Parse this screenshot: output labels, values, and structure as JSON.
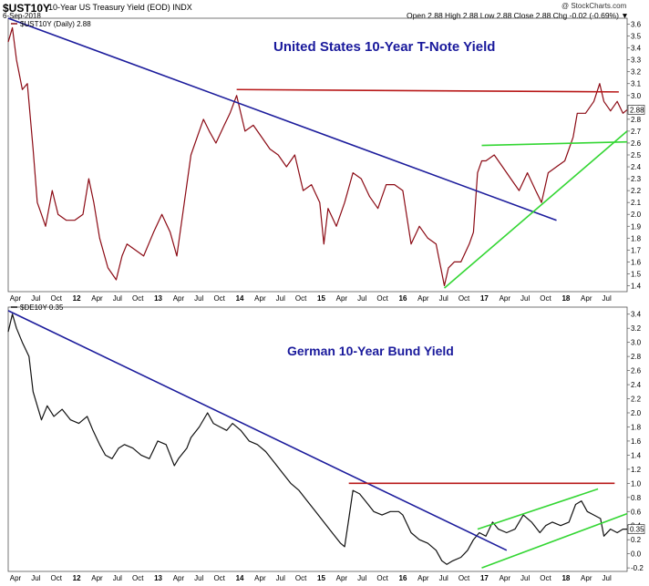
{
  "header": {
    "symbol": "$UST10Y",
    "description": "10-Year US Treasury Yield (EOD)  INDX",
    "date": "6-Sep-2018",
    "ohlc": "Open 2.88  High 2.88  Low 2.88  Close 2.88  Chg -0.02 (-0.69%) ▼",
    "brand": "@ StockCharts.com"
  },
  "colors": {
    "us_series": "#8b0a14",
    "de_series": "#111111",
    "downtrend": "#1c1c9c",
    "resistance": "#b81818",
    "uptrend": "#33d633",
    "annotation_text": "#1a1a9c"
  },
  "chart_data": [
    {
      "type": "line",
      "legend": "$UST10Y (Daily) 2.88",
      "annotation": "United States 10-Year T-Note Yield",
      "last_value_label": "2.88",
      "yticks": [
        1.4,
        1.5,
        1.6,
        1.7,
        1.8,
        1.9,
        2.0,
        2.1,
        2.2,
        2.3,
        2.4,
        2.5,
        2.6,
        2.7,
        2.8,
        2.9,
        3.0,
        3.1,
        3.2,
        3.3,
        3.4,
        3.5,
        3.6
      ],
      "ylim": [
        1.35,
        3.65
      ],
      "xlabels": [
        "Apr",
        "Jul",
        "Oct",
        "12",
        "Apr",
        "Jul",
        "Oct",
        "13",
        "Apr",
        "Jul",
        "Oct",
        "14",
        "Apr",
        "Jul",
        "Oct",
        "15",
        "Apr",
        "Jul",
        "Oct",
        "16",
        "Apr",
        "Jul",
        "Oct",
        "17",
        "Apr",
        "Jul",
        "Oct",
        "18",
        "Apr",
        "Jul"
      ],
      "xlim": [
        2011.25,
        2018.7
      ],
      "series": [
        {
          "values": [
            [
              2011.25,
              3.45
            ],
            [
              2011.3,
              3.57
            ],
            [
              2011.35,
              3.3
            ],
            [
              2011.42,
              3.05
            ],
            [
              2011.48,
              3.1
            ],
            [
              2011.55,
              2.55
            ],
            [
              2011.6,
              2.1
            ],
            [
              2011.65,
              2.0
            ],
            [
              2011.7,
              1.9
            ],
            [
              2011.78,
              2.2
            ],
            [
              2011.85,
              2.0
            ],
            [
              2011.95,
              1.95
            ],
            [
              2012.05,
              1.95
            ],
            [
              2012.15,
              2.0
            ],
            [
              2012.22,
              2.3
            ],
            [
              2012.28,
              2.1
            ],
            [
              2012.35,
              1.8
            ],
            [
              2012.45,
              1.55
            ],
            [
              2012.55,
              1.45
            ],
            [
              2012.62,
              1.65
            ],
            [
              2012.68,
              1.75
            ],
            [
              2012.78,
              1.7
            ],
            [
              2012.88,
              1.65
            ],
            [
              2013.0,
              1.85
            ],
            [
              2013.1,
              2.0
            ],
            [
              2013.2,
              1.85
            ],
            [
              2013.28,
              1.65
            ],
            [
              2013.35,
              2.0
            ],
            [
              2013.45,
              2.5
            ],
            [
              2013.55,
              2.7
            ],
            [
              2013.6,
              2.8
            ],
            [
              2013.67,
              2.7
            ],
            [
              2013.75,
              2.6
            ],
            [
              2013.85,
              2.75
            ],
            [
              2013.92,
              2.85
            ],
            [
              2014.0,
              3.0
            ],
            [
              2014.1,
              2.7
            ],
            [
              2014.2,
              2.75
            ],
            [
              2014.3,
              2.65
            ],
            [
              2014.4,
              2.55
            ],
            [
              2014.5,
              2.5
            ],
            [
              2014.6,
              2.4
            ],
            [
              2014.7,
              2.5
            ],
            [
              2014.8,
              2.2
            ],
            [
              2014.9,
              2.25
            ],
            [
              2015.0,
              2.1
            ],
            [
              2015.05,
              1.75
            ],
            [
              2015.1,
              2.05
            ],
            [
              2015.2,
              1.9
            ],
            [
              2015.3,
              2.1
            ],
            [
              2015.4,
              2.35
            ],
            [
              2015.5,
              2.3
            ],
            [
              2015.6,
              2.15
            ],
            [
              2015.7,
              2.05
            ],
            [
              2015.8,
              2.25
            ],
            [
              2015.9,
              2.25
            ],
            [
              2016.0,
              2.2
            ],
            [
              2016.1,
              1.75
            ],
            [
              2016.2,
              1.9
            ],
            [
              2016.3,
              1.8
            ],
            [
              2016.4,
              1.75
            ],
            [
              2016.5,
              1.4
            ],
            [
              2016.55,
              1.55
            ],
            [
              2016.62,
              1.6
            ],
            [
              2016.7,
              1.6
            ],
            [
              2016.8,
              1.75
            ],
            [
              2016.85,
              1.85
            ],
            [
              2016.9,
              2.35
            ],
            [
              2016.95,
              2.45
            ],
            [
              2017.0,
              2.45
            ],
            [
              2017.1,
              2.5
            ],
            [
              2017.2,
              2.4
            ],
            [
              2017.3,
              2.3
            ],
            [
              2017.4,
              2.2
            ],
            [
              2017.5,
              2.35
            ],
            [
              2017.6,
              2.2
            ],
            [
              2017.67,
              2.1
            ],
            [
              2017.75,
              2.35
            ],
            [
              2017.85,
              2.4
            ],
            [
              2017.95,
              2.45
            ],
            [
              2018.05,
              2.65
            ],
            [
              2018.1,
              2.85
            ],
            [
              2018.2,
              2.85
            ],
            [
              2018.3,
              2.95
            ],
            [
              2018.37,
              3.1
            ],
            [
              2018.42,
              2.95
            ],
            [
              2018.5,
              2.87
            ],
            [
              2018.58,
              2.95
            ],
            [
              2018.65,
              2.85
            ],
            [
              2018.7,
              2.88
            ]
          ]
        }
      ],
      "trendlines": [
        {
          "kind": "downtrend",
          "from": [
            2011.25,
            3.65
          ],
          "to": [
            2017.85,
            1.95
          ]
        },
        {
          "kind": "resistance",
          "from": [
            2014.0,
            3.05
          ],
          "to": [
            2018.6,
            3.03
          ]
        },
        {
          "kind": "uptrend",
          "from": [
            2016.5,
            1.38
          ],
          "to": [
            2018.7,
            2.7
          ]
        },
        {
          "kind": "uptrend",
          "from": [
            2016.95,
            2.58
          ],
          "to": [
            2018.7,
            2.61
          ]
        }
      ]
    },
    {
      "type": "line",
      "legend": "$DE10Y 0.35",
      "annotation": "German 10-Year Bund Yield",
      "last_value_label": "0.35",
      "yticks": [
        -0.2,
        0.0,
        0.2,
        0.4,
        0.6,
        0.8,
        1.0,
        1.2,
        1.4,
        1.6,
        1.8,
        2.0,
        2.2,
        2.4,
        2.6,
        2.8,
        3.0,
        3.2,
        3.4
      ],
      "ylim": [
        -0.25,
        3.5
      ],
      "xlabels": [
        "Apr",
        "Jul",
        "Oct",
        "12",
        "Apr",
        "Jul",
        "Oct",
        "13",
        "Apr",
        "Jul",
        "Oct",
        "14",
        "Apr",
        "Jul",
        "Oct",
        "15",
        "Apr",
        "Jul",
        "Oct",
        "16",
        "Apr",
        "Jul",
        "Oct",
        "17",
        "Apr",
        "Jul",
        "Oct",
        "18",
        "Apr",
        "Jul"
      ],
      "xlim": [
        2011.25,
        2018.7
      ],
      "series": [
        {
          "values": [
            [
              2011.25,
              3.15
            ],
            [
              2011.3,
              3.4
            ],
            [
              2011.35,
              3.2
            ],
            [
              2011.42,
              3.0
            ],
            [
              2011.5,
              2.8
            ],
            [
              2011.55,
              2.3
            ],
            [
              2011.6,
              2.1
            ],
            [
              2011.65,
              1.9
            ],
            [
              2011.72,
              2.1
            ],
            [
              2011.8,
              1.95
            ],
            [
              2011.9,
              2.05
            ],
            [
              2012.0,
              1.9
            ],
            [
              2012.1,
              1.85
            ],
            [
              2012.2,
              1.95
            ],
            [
              2012.27,
              1.75
            ],
            [
              2012.35,
              1.55
            ],
            [
              2012.42,
              1.4
            ],
            [
              2012.5,
              1.35
            ],
            [
              2012.58,
              1.5
            ],
            [
              2012.65,
              1.55
            ],
            [
              2012.75,
              1.5
            ],
            [
              2012.85,
              1.4
            ],
            [
              2012.95,
              1.35
            ],
            [
              2013.05,
              1.6
            ],
            [
              2013.15,
              1.55
            ],
            [
              2013.25,
              1.25
            ],
            [
              2013.3,
              1.35
            ],
            [
              2013.4,
              1.5
            ],
            [
              2013.45,
              1.65
            ],
            [
              2013.55,
              1.8
            ],
            [
              2013.65,
              2.0
            ],
            [
              2013.72,
              1.85
            ],
            [
              2013.8,
              1.8
            ],
            [
              2013.88,
              1.75
            ],
            [
              2013.95,
              1.85
            ],
            [
              2014.05,
              1.75
            ],
            [
              2014.15,
              1.6
            ],
            [
              2014.25,
              1.55
            ],
            [
              2014.35,
              1.45
            ],
            [
              2014.45,
              1.3
            ],
            [
              2014.55,
              1.15
            ],
            [
              2014.65,
              1.0
            ],
            [
              2014.75,
              0.9
            ],
            [
              2014.85,
              0.75
            ],
            [
              2014.95,
              0.6
            ],
            [
              2015.05,
              0.45
            ],
            [
              2015.15,
              0.3
            ],
            [
              2015.25,
              0.15
            ],
            [
              2015.3,
              0.1
            ],
            [
              2015.35,
              0.5
            ],
            [
              2015.4,
              0.9
            ],
            [
              2015.48,
              0.85
            ],
            [
              2015.55,
              0.75
            ],
            [
              2015.65,
              0.6
            ],
            [
              2015.75,
              0.55
            ],
            [
              2015.85,
              0.6
            ],
            [
              2015.95,
              0.6
            ],
            [
              2016.0,
              0.55
            ],
            [
              2016.1,
              0.3
            ],
            [
              2016.2,
              0.2
            ],
            [
              2016.3,
              0.15
            ],
            [
              2016.4,
              0.05
            ],
            [
              2016.47,
              -0.1
            ],
            [
              2016.53,
              -0.15
            ],
            [
              2016.6,
              -0.1
            ],
            [
              2016.7,
              -0.05
            ],
            [
              2016.78,
              0.05
            ],
            [
              2016.85,
              0.2
            ],
            [
              2016.92,
              0.3
            ],
            [
              2017.0,
              0.25
            ],
            [
              2017.08,
              0.45
            ],
            [
              2017.15,
              0.35
            ],
            [
              2017.25,
              0.3
            ],
            [
              2017.35,
              0.35
            ],
            [
              2017.45,
              0.55
            ],
            [
              2017.55,
              0.45
            ],
            [
              2017.65,
              0.3
            ],
            [
              2017.72,
              0.4
            ],
            [
              2017.8,
              0.45
            ],
            [
              2017.9,
              0.4
            ],
            [
              2018.0,
              0.45
            ],
            [
              2018.08,
              0.7
            ],
            [
              2018.15,
              0.75
            ],
            [
              2018.22,
              0.6
            ],
            [
              2018.3,
              0.55
            ],
            [
              2018.38,
              0.5
            ],
            [
              2018.42,
              0.25
            ],
            [
              2018.5,
              0.35
            ],
            [
              2018.58,
              0.3
            ],
            [
              2018.65,
              0.35
            ],
            [
              2018.7,
              0.35
            ]
          ]
        }
      ],
      "trendlines": [
        {
          "kind": "downtrend",
          "from": [
            2011.25,
            3.45
          ],
          "to": [
            2017.25,
            0.05
          ]
        },
        {
          "kind": "resistance",
          "from": [
            2015.35,
            1.0
          ],
          "to": [
            2018.55,
            1.0
          ]
        },
        {
          "kind": "uptrend",
          "from": [
            2016.9,
            0.35
          ],
          "to": [
            2018.35,
            0.92
          ]
        },
        {
          "kind": "uptrend",
          "from": [
            2016.95,
            -0.2
          ],
          "to": [
            2018.7,
            0.57
          ]
        }
      ]
    }
  ]
}
